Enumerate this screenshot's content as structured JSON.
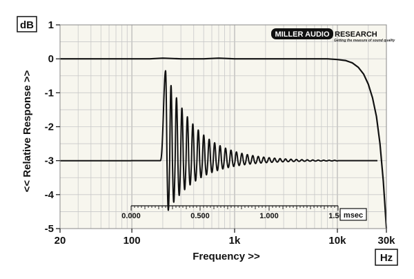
{
  "chart_data": {
    "type": "line",
    "xlabel": "Frequency >>",
    "ylabel": "<< Relative Response >>",
    "x_unit": "Hz",
    "y_unit": "dB",
    "x_scale": "log",
    "xlim": [
      20,
      30000
    ],
    "ylim": [
      -5,
      1
    ],
    "x_ticks": [
      {
        "value": 20,
        "label": "20"
      },
      {
        "value": 100,
        "label": "100"
      },
      {
        "value": 1000,
        "label": "1k"
      },
      {
        "value": 10000,
        "label": "10k"
      },
      {
        "value": 30000,
        "label": "30k"
      }
    ],
    "y_ticks": [
      {
        "value": 1,
        "label": "1"
      },
      {
        "value": 0,
        "label": "0"
      },
      {
        "value": -1,
        "label": "-1"
      },
      {
        "value": -2,
        "label": "-2"
      },
      {
        "value": -3,
        "label": "-3"
      },
      {
        "value": -4,
        "label": "-4"
      },
      {
        "value": -5,
        "label": "-5"
      }
    ],
    "grid": true,
    "series": [
      {
        "x": [
          20,
          100,
          150,
          200,
          300,
          500,
          700,
          1000,
          1500,
          2000,
          3000,
          5000,
          8000,
          10000,
          12000,
          14000,
          16000,
          18000,
          20000,
          22000,
          24000,
          26000,
          28000,
          29000,
          30000
        ],
        "y": [
          0,
          0,
          0,
          0.02,
          0,
          0,
          0.02,
          0,
          0,
          0,
          0,
          0,
          0,
          -0.02,
          -0.05,
          -0.12,
          -0.25,
          -0.45,
          -0.75,
          -1.15,
          -1.7,
          -2.5,
          -3.6,
          -4.3,
          -5
        ]
      }
    ],
    "inset": {
      "type": "line",
      "x_unit": "msec",
      "xlim": [
        0,
        1.5
      ],
      "x_ticks": [
        {
          "value": 0,
          "label": "0.000"
        },
        {
          "value": 0.5,
          "label": "0.500"
        },
        {
          "value": 1.0,
          "label": "1.000"
        },
        {
          "value": 1.5,
          "label": "1.500"
        }
      ],
      "baseline": -3,
      "impulse_start_ms": 0.21,
      "peak_ms": 0.25,
      "peak_value": -0.35,
      "trough_value": -4.6,
      "ring_period_ms": 0.0395,
      "decay_ms": 0.22,
      "end_ms": 1.5
    }
  },
  "logo": {
    "name_left": "MILLER AUDIO",
    "name_right": "RESEARCH",
    "tagline": "Getting the measure of sound quality"
  },
  "colors": {
    "plot_bg": "#f7f6ee",
    "grid": "#c8c8c8",
    "line": "#111111",
    "frame": "#888888"
  }
}
